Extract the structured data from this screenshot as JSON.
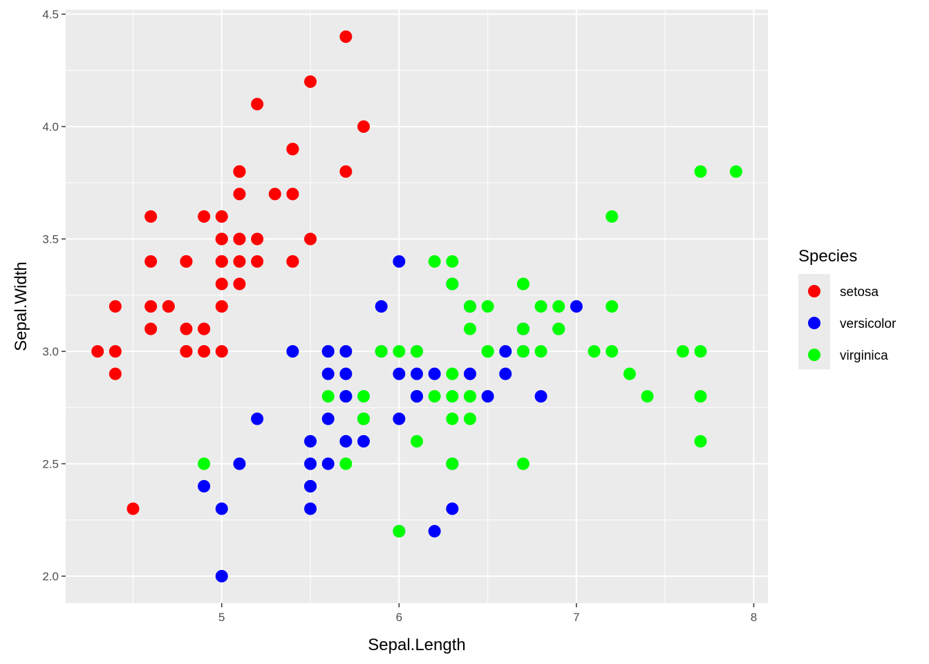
{
  "chart_data": {
    "type": "scatter",
    "xlabel": "Sepal.Length",
    "ylabel": "Sepal.Width",
    "xlim": [
      4.12,
      8.08
    ],
    "ylim": [
      1.88,
      4.52
    ],
    "x_ticks": [
      "5",
      "6",
      "7",
      "8"
    ],
    "x_tick_values": [
      5,
      6,
      7,
      8
    ],
    "y_ticks": [
      "2.0",
      "2.5",
      "3.0",
      "3.5",
      "4.0",
      "4.5"
    ],
    "y_tick_values": [
      2.0,
      2.5,
      3.0,
      3.5,
      4.0,
      4.5
    ],
    "grid": true,
    "legend": {
      "title": "Species",
      "position": "right"
    },
    "series": [
      {
        "name": "setosa",
        "color": "#ff0000",
        "points": [
          [
            5.1,
            3.5
          ],
          [
            4.9,
            3.0
          ],
          [
            4.7,
            3.2
          ],
          [
            4.6,
            3.1
          ],
          [
            5.0,
            3.6
          ],
          [
            5.4,
            3.9
          ],
          [
            4.6,
            3.4
          ],
          [
            5.0,
            3.4
          ],
          [
            4.4,
            2.9
          ],
          [
            4.9,
            3.1
          ],
          [
            5.4,
            3.7
          ],
          [
            4.8,
            3.4
          ],
          [
            4.8,
            3.0
          ],
          [
            4.3,
            3.0
          ],
          [
            5.8,
            4.0
          ],
          [
            5.7,
            4.4
          ],
          [
            5.4,
            3.9
          ],
          [
            5.1,
            3.5
          ],
          [
            5.7,
            3.8
          ],
          [
            5.1,
            3.8
          ],
          [
            5.4,
            3.4
          ],
          [
            5.1,
            3.7
          ],
          [
            4.6,
            3.6
          ],
          [
            5.1,
            3.3
          ],
          [
            4.8,
            3.4
          ],
          [
            5.0,
            3.0
          ],
          [
            5.0,
            3.4
          ],
          [
            5.2,
            3.5
          ],
          [
            5.2,
            3.4
          ],
          [
            4.7,
            3.2
          ],
          [
            4.8,
            3.1
          ],
          [
            5.4,
            3.4
          ],
          [
            5.2,
            4.1
          ],
          [
            5.5,
            4.2
          ],
          [
            4.9,
            3.1
          ],
          [
            5.0,
            3.2
          ],
          [
            5.5,
            3.5
          ],
          [
            4.9,
            3.6
          ],
          [
            4.4,
            3.0
          ],
          [
            5.1,
            3.4
          ],
          [
            5.0,
            3.5
          ],
          [
            4.5,
            2.3
          ],
          [
            4.4,
            3.2
          ],
          [
            5.0,
            3.5
          ],
          [
            5.1,
            3.8
          ],
          [
            4.8,
            3.0
          ],
          [
            5.1,
            3.8
          ],
          [
            4.6,
            3.2
          ],
          [
            5.3,
            3.7
          ],
          [
            5.0,
            3.3
          ]
        ]
      },
      {
        "name": "versicolor",
        "color": "#0000ff",
        "points": [
          [
            7.0,
            3.2
          ],
          [
            6.4,
            3.2
          ],
          [
            6.9,
            3.1
          ],
          [
            5.5,
            2.3
          ],
          [
            6.5,
            2.8
          ],
          [
            5.7,
            2.8
          ],
          [
            6.3,
            3.3
          ],
          [
            4.9,
            2.4
          ],
          [
            6.6,
            2.9
          ],
          [
            5.2,
            2.7
          ],
          [
            5.0,
            2.0
          ],
          [
            5.9,
            3.0
          ],
          [
            6.0,
            2.2
          ],
          [
            6.1,
            2.9
          ],
          [
            5.6,
            2.9
          ],
          [
            6.7,
            3.1
          ],
          [
            5.6,
            3.0
          ],
          [
            5.8,
            2.7
          ],
          [
            6.2,
            2.2
          ],
          [
            5.6,
            2.5
          ],
          [
            5.9,
            3.2
          ],
          [
            6.1,
            2.8
          ],
          [
            6.3,
            2.5
          ],
          [
            6.1,
            2.8
          ],
          [
            6.4,
            2.9
          ],
          [
            6.6,
            3.0
          ],
          [
            6.8,
            2.8
          ],
          [
            6.7,
            3.0
          ],
          [
            6.0,
            2.9
          ],
          [
            5.7,
            2.6
          ],
          [
            5.5,
            2.4
          ],
          [
            5.5,
            2.4
          ],
          [
            5.8,
            2.7
          ],
          [
            6.0,
            2.7
          ],
          [
            5.4,
            3.0
          ],
          [
            6.0,
            3.4
          ],
          [
            6.7,
            3.1
          ],
          [
            6.3,
            2.3
          ],
          [
            5.6,
            3.0
          ],
          [
            5.5,
            2.5
          ],
          [
            5.5,
            2.6
          ],
          [
            6.1,
            3.0
          ],
          [
            5.8,
            2.6
          ],
          [
            5.0,
            2.3
          ],
          [
            5.6,
            2.7
          ],
          [
            5.7,
            3.0
          ],
          [
            5.7,
            2.9
          ],
          [
            6.2,
            2.9
          ],
          [
            5.1,
            2.5
          ],
          [
            5.7,
            2.8
          ]
        ]
      },
      {
        "name": "virginica",
        "color": "#00ff00",
        "points": [
          [
            6.3,
            3.3
          ],
          [
            5.8,
            2.7
          ],
          [
            7.1,
            3.0
          ],
          [
            6.3,
            2.9
          ],
          [
            6.5,
            3.0
          ],
          [
            7.6,
            3.0
          ],
          [
            4.9,
            2.5
          ],
          [
            7.3,
            2.9
          ],
          [
            6.7,
            2.5
          ],
          [
            7.2,
            3.6
          ],
          [
            6.5,
            3.2
          ],
          [
            6.4,
            2.7
          ],
          [
            6.8,
            3.0
          ],
          [
            5.7,
            2.5
          ],
          [
            5.8,
            2.8
          ],
          [
            6.4,
            3.2
          ],
          [
            6.5,
            3.0
          ],
          [
            7.7,
            3.8
          ],
          [
            7.7,
            2.6
          ],
          [
            6.0,
            2.2
          ],
          [
            6.9,
            3.2
          ],
          [
            5.6,
            2.8
          ],
          [
            7.7,
            2.8
          ],
          [
            6.3,
            2.7
          ],
          [
            6.7,
            3.3
          ],
          [
            7.2,
            3.2
          ],
          [
            6.2,
            2.8
          ],
          [
            6.1,
            3.0
          ],
          [
            6.4,
            2.8
          ],
          [
            7.2,
            3.0
          ],
          [
            7.4,
            2.8
          ],
          [
            7.9,
            3.8
          ],
          [
            6.4,
            2.8
          ],
          [
            6.3,
            2.8
          ],
          [
            6.1,
            2.6
          ],
          [
            7.7,
            3.0
          ],
          [
            6.3,
            3.4
          ],
          [
            6.4,
            3.1
          ],
          [
            6.0,
            3.0
          ],
          [
            6.9,
            3.1
          ],
          [
            6.7,
            3.1
          ],
          [
            6.9,
            3.1
          ],
          [
            5.8,
            2.7
          ],
          [
            6.8,
            3.2
          ],
          [
            6.7,
            3.3
          ],
          [
            6.7,
            3.0
          ],
          [
            6.3,
            2.5
          ],
          [
            6.5,
            3.0
          ],
          [
            6.2,
            3.4
          ],
          [
            5.9,
            3.0
          ]
        ]
      }
    ]
  }
}
